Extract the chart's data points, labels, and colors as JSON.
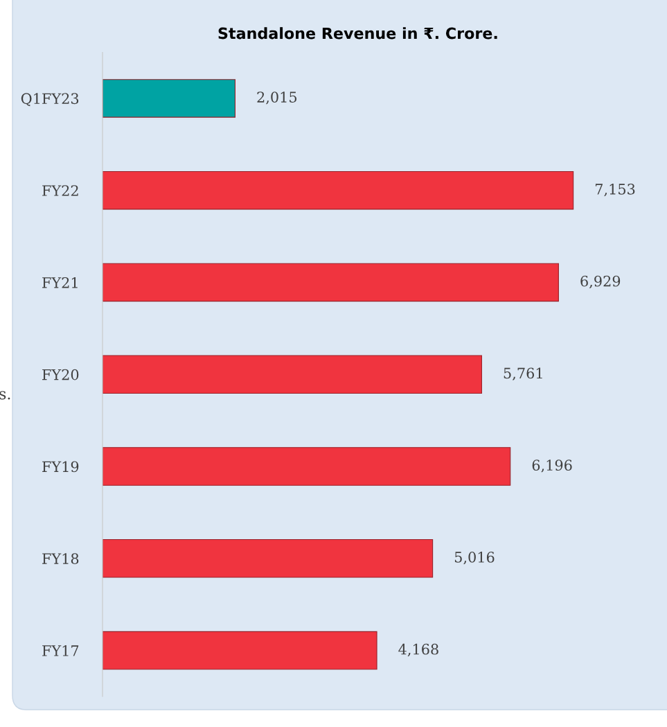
{
  "chart_data": {
    "type": "bar",
    "orientation": "horizontal",
    "title": "Standalone Revenue in ₹. Crore.",
    "categories": [
      "Q1FY23",
      "FY22",
      "FY21",
      "FY20",
      "FY19",
      "FY18",
      "FY17"
    ],
    "values": [
      2015,
      7153,
      6929,
      5761,
      6196,
      5016,
      4168
    ],
    "colors": [
      "#00a3a3",
      "#f0343f",
      "#f0343f",
      "#f0343f",
      "#f0343f",
      "#f0343f",
      "#f0343f"
    ],
    "data_labels": true,
    "value_labels": [
      "2,015",
      "7,153",
      "6,929",
      "5,761",
      "6,196",
      "5,016",
      "4,168"
    ],
    "annotations": [
      "s."
    ],
    "grid": false,
    "legend": false
  }
}
